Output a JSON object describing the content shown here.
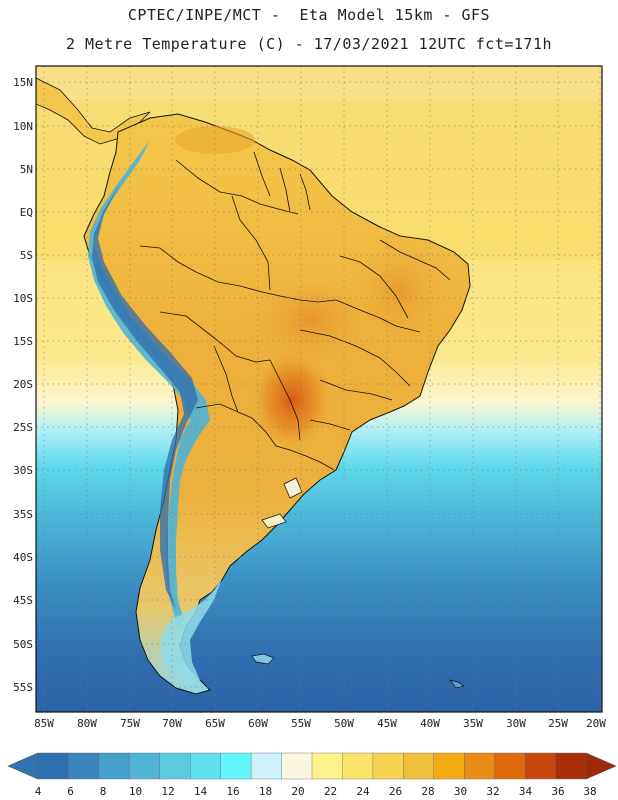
{
  "header": {
    "line1": "CPTEC/INPE/MCT -  Eta Model 15km - GFS",
    "line2": "2 Metre Temperature (C) - 17/03/2021 12UTC fct=171h"
  },
  "map": {
    "lat_labels": [
      "15N",
      "10N",
      "5N",
      "EQ",
      "5S",
      "10S",
      "15S",
      "20S",
      "25S",
      "30S",
      "35S",
      "40S",
      "45S",
      "50S",
      "55S"
    ],
    "lon_labels": [
      "85W",
      "80W",
      "75W",
      "70W",
      "65W",
      "60W",
      "55W",
      "50W",
      "45W",
      "40W",
      "35W",
      "30W",
      "25W",
      "20W"
    ]
  },
  "colorbar": {
    "labels": [
      "4",
      "6",
      "8",
      "10",
      "12",
      "14",
      "16",
      "18",
      "20",
      "22",
      "24",
      "26",
      "28",
      "30",
      "32",
      "34",
      "36",
      "38"
    ],
    "colors": [
      "#2e6fb0",
      "#3a85c0",
      "#46a0cc",
      "#52b5d8",
      "#5ccbe0",
      "#5fe0ec",
      "#62f6fb",
      "#cdf2fb",
      "#fbf6e0",
      "#fdf18c",
      "#fbe36a",
      "#f6d350",
      "#f0c03a",
      "#f2ab10",
      "#ea8c18",
      "#df6a0c",
      "#c94810",
      "#a83008"
    ],
    "low_color": "#3274b2",
    "high_color": "#a02a08"
  }
}
